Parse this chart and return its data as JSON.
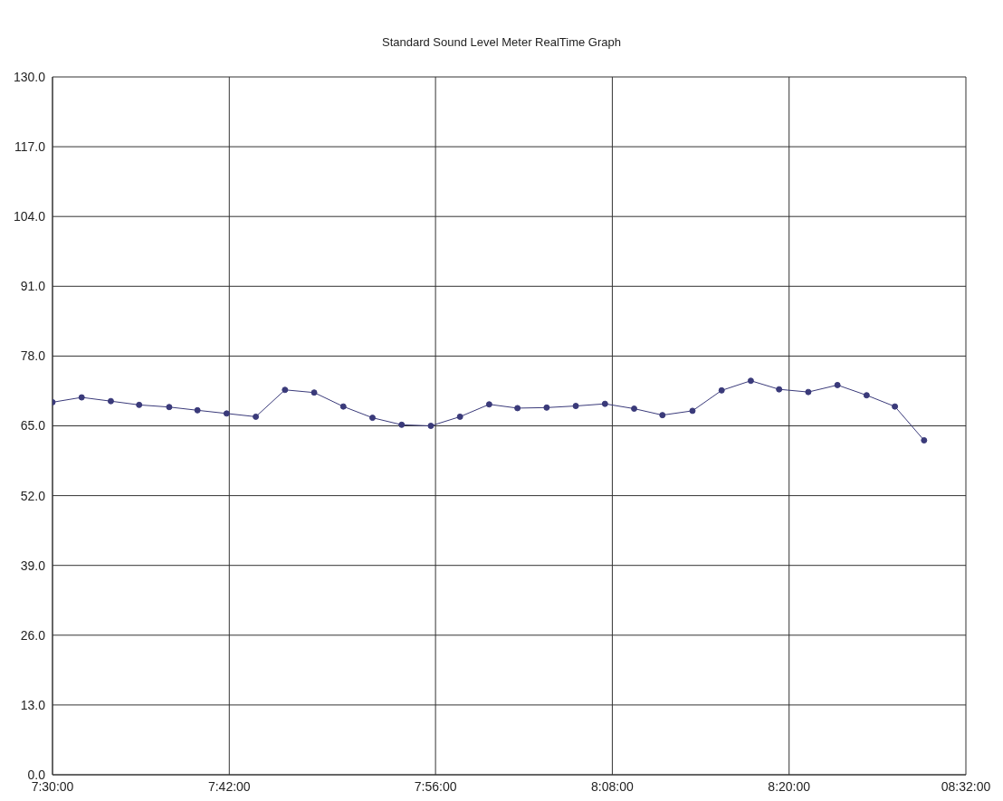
{
  "chart_data": {
    "type": "line",
    "title": "Standard Sound Level Meter RealTime Graph",
    "x": [
      7.5,
      7.533,
      7.566,
      7.598,
      7.632,
      7.664,
      7.697,
      7.73,
      7.763,
      7.796,
      7.829,
      7.862,
      7.895,
      7.928,
      7.961,
      7.994,
      8.026,
      8.059,
      8.092,
      8.125,
      8.158,
      8.19,
      8.224,
      8.257,
      8.29,
      8.322,
      8.355,
      8.388,
      8.421,
      8.453,
      8.486
    ],
    "series": [
      {
        "color": "#3a3a7a",
        "values": [
          69.4,
          70.3,
          69.6,
          68.9,
          68.5,
          67.9,
          67.3,
          66.7,
          71.7,
          71.2,
          68.6,
          66.5,
          65.2,
          65.0,
          66.7,
          69.0,
          68.3,
          68.4,
          68.7,
          69.1,
          68.2,
          67.0,
          67.8,
          71.6,
          73.4,
          71.8,
          71.3,
          72.6,
          70.7,
          68.6,
          62.3
        ]
      }
    ],
    "xlim": [
      7.5,
      8.5333
    ],
    "xticks": [
      {
        "value": 7.5,
        "label": "7:30:00"
      },
      {
        "value": 7.7,
        "label": "7:42:00"
      },
      {
        "value": 7.9333,
        "label": "7:56:00"
      },
      {
        "value": 8.1333,
        "label": "8:08:00"
      },
      {
        "value": 8.3333,
        "label": "8:20:00"
      },
      {
        "value": 8.5333,
        "label": "08:32:00"
      }
    ],
    "ylim": [
      0,
      130
    ],
    "yticks": [
      {
        "value": 0,
        "label": "0.0"
      },
      {
        "value": 13,
        "label": "13.0"
      },
      {
        "value": 26,
        "label": "26.0"
      },
      {
        "value": 39,
        "label": "39.0"
      },
      {
        "value": 52,
        "label": "52.0"
      },
      {
        "value": 65,
        "label": "65.0"
      },
      {
        "value": 78,
        "label": "78.0"
      },
      {
        "value": 91,
        "label": "91.0"
      },
      {
        "value": 104,
        "label": "104.0"
      },
      {
        "value": 117,
        "label": "117.0"
      },
      {
        "value": 130,
        "label": "130.0"
      }
    ],
    "grid": true,
    "marker": "circle",
    "line_style": "solid"
  }
}
